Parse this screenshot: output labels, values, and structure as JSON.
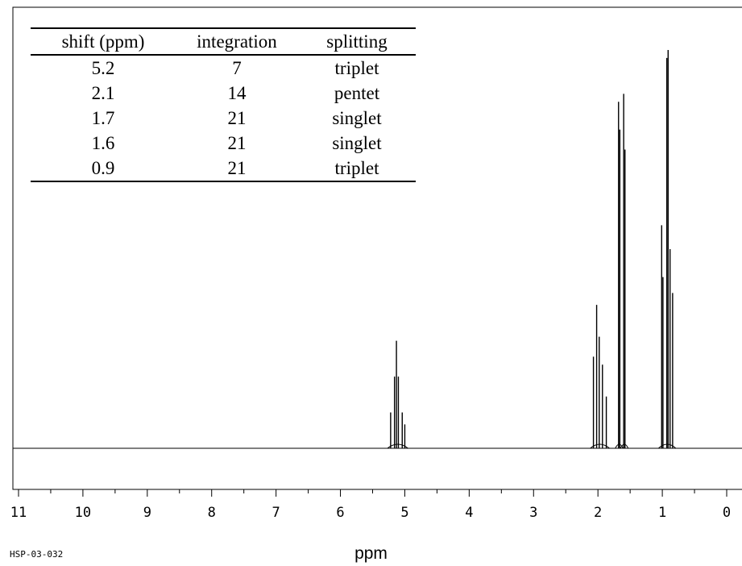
{
  "chart_data": {
    "type": "line",
    "xlabel": "ppm",
    "x_reversed": true,
    "xlim": [
      11,
      0
    ],
    "x_ticks": [
      11,
      10,
      9,
      8,
      7,
      6,
      5,
      4,
      3,
      2,
      1,
      0
    ],
    "grid": false,
    "spectrum_id": "HSP-03-032",
    "peaks": [
      {
        "shift": 5.2,
        "lines": [
          [
            5.22,
            0.09
          ],
          [
            5.16,
            0.18
          ],
          [
            5.13,
            0.27
          ],
          [
            5.1,
            0.18
          ],
          [
            5.04,
            0.09
          ],
          [
            5.0,
            0.06
          ]
        ]
      },
      {
        "shift": 2.1,
        "lines": [
          [
            2.07,
            0.23
          ],
          [
            2.02,
            0.36
          ],
          [
            1.98,
            0.28
          ],
          [
            1.93,
            0.21
          ],
          [
            1.87,
            0.13
          ]
        ]
      },
      {
        "shift": 1.7,
        "lines": [
          [
            1.68,
            0.87
          ],
          [
            1.66,
            0.8
          ]
        ]
      },
      {
        "shift": 1.6,
        "lines": [
          [
            1.6,
            0.89
          ],
          [
            1.58,
            0.75
          ]
        ]
      },
      {
        "shift": 0.9,
        "lines": [
          [
            1.01,
            0.56
          ],
          [
            0.99,
            0.43
          ],
          [
            0.93,
            0.98
          ],
          [
            0.91,
            1.0
          ],
          [
            0.88,
            0.5
          ],
          [
            0.84,
            0.39
          ]
        ]
      }
    ]
  },
  "table": {
    "headers": [
      "shift (ppm)",
      "integration",
      "splitting"
    ],
    "rows": [
      [
        "5.2",
        "7",
        "triplet"
      ],
      [
        "2.1",
        "14",
        "pentet"
      ],
      [
        "1.7",
        "21",
        "singlet"
      ],
      [
        "1.6",
        "21",
        "singlet"
      ],
      [
        "0.9",
        "21",
        "triplet"
      ]
    ]
  }
}
